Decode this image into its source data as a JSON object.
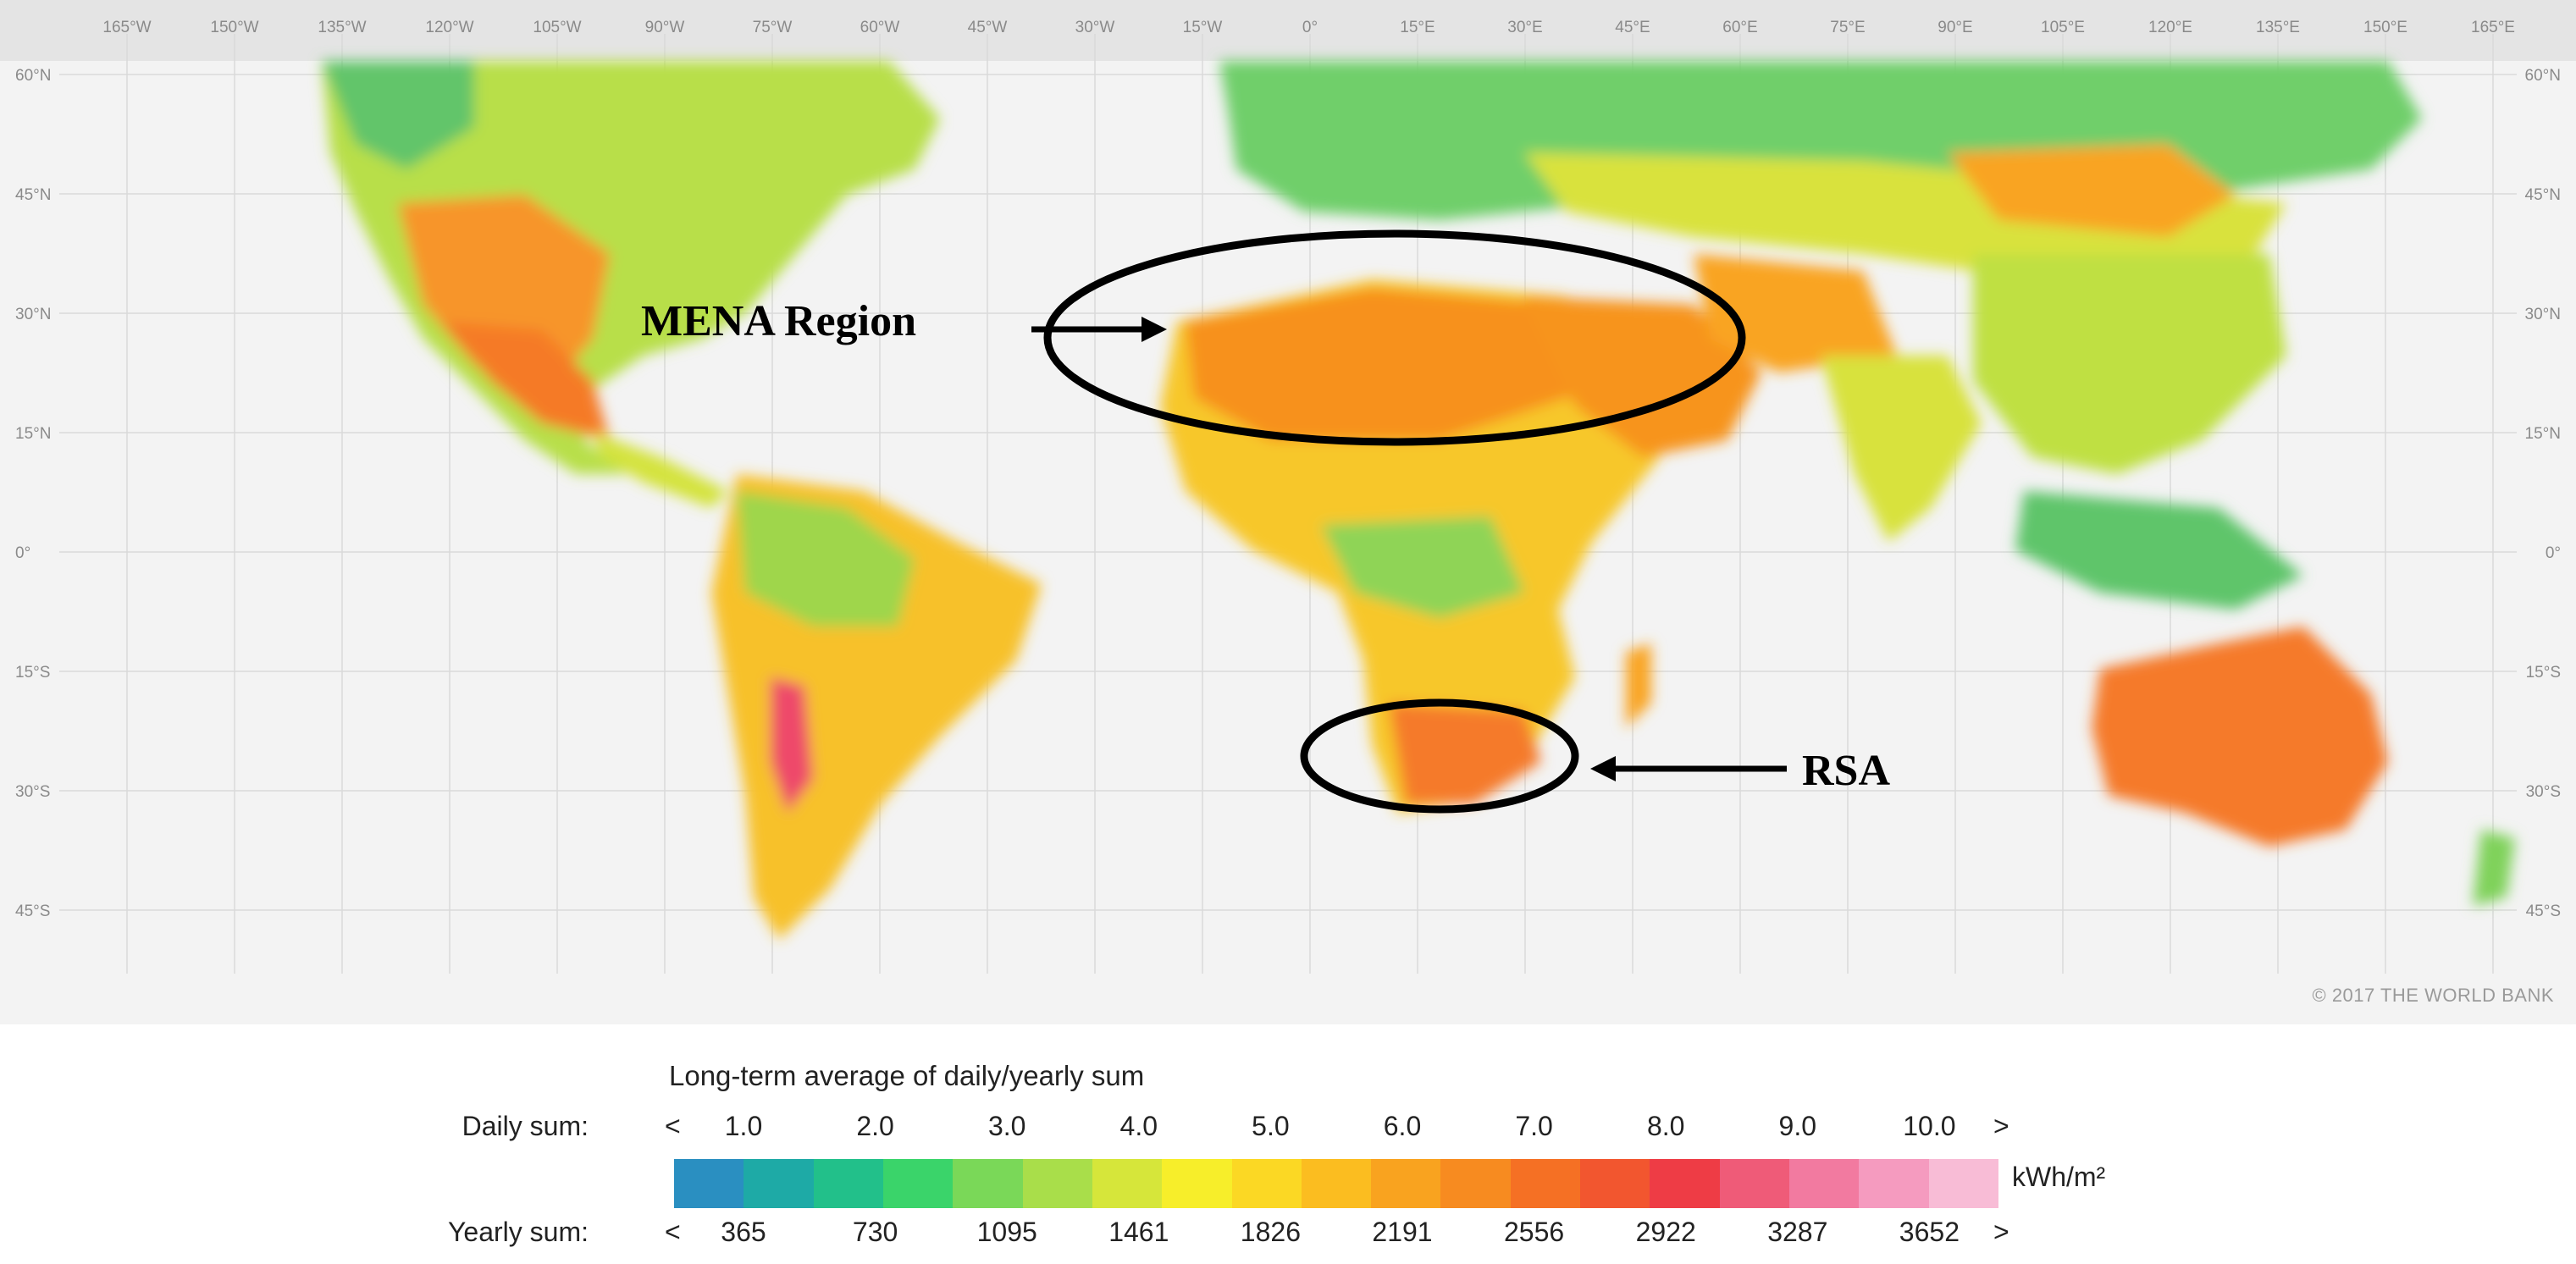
{
  "map": {
    "longitude_labels": [
      "165°W",
      "150°W",
      "135°W",
      "120°W",
      "105°W",
      "90°W",
      "75°W",
      "60°W",
      "45°W",
      "30°W",
      "15°W",
      "0°",
      "15°E",
      "30°E",
      "45°E",
      "60°E",
      "75°E",
      "90°E",
      "105°E",
      "120°E",
      "135°E",
      "150°E",
      "165°E"
    ],
    "latitude_labels": [
      "60°N",
      "45°N",
      "30°N",
      "15°N",
      "0°",
      "15°S",
      "30°S",
      "45°S"
    ],
    "copyright": "© 2017 THE WORLD BANK",
    "annotations": {
      "mena": "MENA Region",
      "rsa": "RSA"
    }
  },
  "legend": {
    "title": "Long-term average of daily/yearly sum",
    "daily_label": "Daily sum:",
    "yearly_label": "Yearly sum:",
    "lt": "<",
    "gt": ">",
    "daily_values": [
      "1.0",
      "2.0",
      "3.0",
      "4.0",
      "5.0",
      "6.0",
      "7.0",
      "8.0",
      "9.0",
      "10.0"
    ],
    "yearly_values": [
      "365",
      "730",
      "1095",
      "1461",
      "1826",
      "2191",
      "2556",
      "2922",
      "3287",
      "3652"
    ],
    "unit": "kWh/m²",
    "colors": [
      "#2a8fc1",
      "#1eaaa6",
      "#22c08a",
      "#3ad46a",
      "#7ad858",
      "#a9de4a",
      "#d6e63a",
      "#f7ee2a",
      "#fbd824",
      "#fbbd20",
      "#f9a31f",
      "#f78b20",
      "#f57024",
      "#f2562f",
      "#ee3c45",
      "#ef5b78",
      "#f27aa0",
      "#f59bbf",
      "#f8bcd6"
    ]
  }
}
